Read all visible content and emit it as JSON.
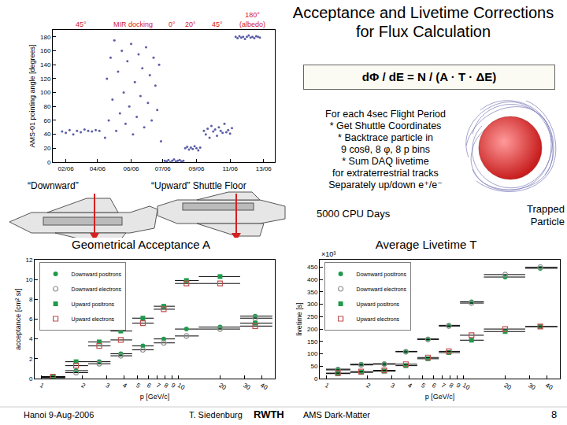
{
  "slide": {
    "title": "Acceptance and Livetime Corrections for Flux Calculation",
    "formula": "dΦ / dE  =  N / (A · T · ΔE)",
    "method_lines": [
      "For each 4sec Flight Period",
      "* Get Shuttle Coordinates",
      "* Backtrace particle in",
      "9 cosθ, 8 φ, 8 p bins",
      "* Sum DAQ livetime",
      "for extraterrestrial tracks",
      "Separately up/down e⁺/e⁻"
    ],
    "cpu": "5000 CPU Days",
    "trapped_label": "Trapped Particle",
    "downward_label": "“Downward”",
    "upward_label": "“Upward” Shuttle Floor",
    "footer": {
      "place_date": "Hanoi  9-Aug-2006",
      "author": "T. Siedenburg",
      "logo": "RWTH",
      "talk": "AMS Dark-Matter",
      "page": "8"
    }
  },
  "chart_data": [
    {
      "type": "scatter",
      "y_label": "AMS-01 pointing angle [degrees]",
      "x": [
        2.0,
        2.2,
        2.4,
        2.6,
        2.8,
        3.0,
        3.2,
        3.4,
        3.6,
        3.8,
        4.0,
        4.3,
        4.4,
        4.5,
        4.6,
        4.7,
        4.8,
        4.9,
        5.0,
        5.1,
        5.2,
        5.3,
        5.4,
        5.5,
        5.6,
        5.7,
        5.8,
        5.9,
        6.0,
        6.1,
        6.2,
        6.3,
        6.4,
        6.5,
        6.6,
        6.7,
        6.8,
        6.9,
        7.0,
        7.1,
        7.2,
        7.3,
        7.5,
        7.6,
        7.7,
        7.8,
        7.9,
        8.0,
        8.1,
        8.2,
        8.3,
        8.4,
        8.5,
        8.6,
        8.7,
        8.8,
        8.9,
        9.0,
        9.1,
        9.2,
        9.3,
        9.4,
        9.6,
        9.7,
        9.8,
        9.9,
        10.0,
        10.1,
        10.2,
        10.3,
        10.4,
        10.5,
        10.6,
        10.7,
        10.8,
        10.9,
        11.0,
        11.1,
        11.3,
        11.4,
        11.5,
        11.6,
        11.7,
        11.8,
        11.9,
        12.0,
        12.1,
        12.2,
        12.3,
        12.4,
        12.5,
        12.6
      ],
      "values": [
        44,
        42,
        46,
        40,
        45,
        43,
        47,
        45,
        44,
        46,
        45,
        35,
        120,
        60,
        150,
        90,
        175,
        45,
        130,
        70,
        160,
        100,
        55,
        145,
        80,
        170,
        40,
        115,
        65,
        155,
        95,
        135,
        50,
        165,
        85,
        125,
        60,
        150,
        110,
        75,
        140,
        30,
        2,
        1,
        3,
        0,
        2,
        4,
        1,
        2,
        3,
        1,
        2,
        20,
        22,
        18,
        21,
        19,
        23,
        20,
        17,
        21,
        45,
        40,
        48,
        35,
        52,
        44,
        47,
        38,
        50,
        45,
        42,
        55,
        43,
        46,
        41,
        49,
        180,
        178,
        181,
        179,
        180,
        177,
        180,
        182,
        179,
        180,
        178,
        181,
        180,
        179
      ],
      "color": "#5b5ea6",
      "marker": "dot",
      "xlim": [
        1.5,
        13.4
      ],
      "xticks": [
        {
          "value": 2.2,
          "label": "02/06"
        },
        {
          "value": 3.9,
          "label": "04/06"
        },
        {
          "value": 5.7,
          "label": "06/06"
        },
        {
          "value": 7.4,
          "label": "07/06"
        },
        {
          "value": 9.2,
          "label": "09/06"
        },
        {
          "value": 11.0,
          "label": "11/06"
        },
        {
          "value": 12.8,
          "label": "13/06"
        }
      ],
      "ylim": [
        0,
        190
      ],
      "yticks": [
        0,
        20,
        40,
        60,
        80,
        100,
        120,
        140,
        160,
        180
      ],
      "grid": false,
      "annotations": [
        {
          "text": "45°",
          "x": 3.0
        },
        {
          "text": "MIR docking",
          "x": 5.8
        },
        {
          "text": "0°",
          "x": 7.9
        },
        {
          "text": "20°",
          "x": 8.9
        },
        {
          "text": "45°",
          "x": 10.3
        },
        {
          "text": "180° (albedo)",
          "x": 12.2
        }
      ]
    },
    {
      "type": "scatter",
      "title": "Geometrical Acceptance A",
      "x_label": "p [GeV/c]",
      "y_label": "acceptance [cm² sr]",
      "x": [
        1.22,
        1.8,
        2.65,
        3.8,
        5.5,
        7.8,
        11.4,
        20,
        36
      ],
      "bins": [
        1,
        1.5,
        2.2,
        3.2,
        4.6,
        6.6,
        9.4,
        14,
        28,
        48
      ],
      "log": "x",
      "xlim": [
        0.9,
        50
      ],
      "xticks": [
        1,
        2,
        3,
        4,
        5,
        6,
        7,
        8,
        9,
        10,
        20,
        30,
        40
      ],
      "ylim": [
        0,
        12
      ],
      "yticks": [
        0,
        2,
        4,
        6,
        8,
        10,
        12
      ],
      "grid": false,
      "legend": "top-left",
      "series": [
        {
          "name": "Downward positrons",
          "color": "#1f9a4b",
          "marker": "circle",
          "values": [
            0.1,
            0.8,
            1.7,
            2.5,
            3.3,
            4.0,
            5.0,
            5.2,
            6.3
          ]
        },
        {
          "name": "Downward electrons",
          "color": "#8c8c8c",
          "marker": "circle-open",
          "values": [
            0.1,
            0.6,
            1.5,
            2.3,
            2.9,
            3.6,
            4.3,
            5.0,
            6.1
          ]
        },
        {
          "name": "Upward positrons",
          "color": "#1f9a4b",
          "marker": "square",
          "values": [
            0.2,
            1.7,
            3.7,
            4.8,
            6.1,
            7.3,
            9.9,
            10.3,
            5.6
          ]
        },
        {
          "name": "Upward electrons",
          "color": "#c0504d",
          "marker": "square-open",
          "values": [
            0.2,
            1.3,
            3.3,
            3.9,
            5.6,
            7.0,
            9.6,
            9.6,
            5.3
          ]
        }
      ]
    },
    {
      "type": "scatter",
      "title": "Average Livetime T",
      "x_label": "p [GeV/c]",
      "y_label": "livetime [s]",
      "y_multiplier": "×10³",
      "x": [
        1.22,
        1.8,
        2.65,
        3.8,
        5.5,
        7.8,
        11.4,
        20,
        36
      ],
      "bins": [
        1,
        1.5,
        2.2,
        3.2,
        4.6,
        6.6,
        9.4,
        14,
        28,
        48
      ],
      "log": "x",
      "xlim": [
        0.9,
        50
      ],
      "xticks": [
        1,
        2,
        3,
        4,
        5,
        6,
        7,
        8,
        9,
        10,
        20,
        30,
        40
      ],
      "ylim": [
        0,
        480
      ],
      "yticks": [
        0,
        50,
        100,
        150,
        200,
        250,
        300,
        350,
        400,
        450
      ],
      "grid": false,
      "legend": "top-left",
      "series": [
        {
          "name": "Downward positrons",
          "color": "#1f9a4b",
          "marker": "circle",
          "values": [
            38,
            58,
            60,
            110,
            160,
            215,
            310,
            410,
            445
          ]
        },
        {
          "name": "Downward electrons",
          "color": "#8c8c8c",
          "marker": "circle-open",
          "values": [
            35,
            55,
            58,
            108,
            158,
            212,
            305,
            420,
            450
          ]
        },
        {
          "name": "Upward positrons",
          "color": "#1f9a4b",
          "marker": "square",
          "values": [
            20,
            25,
            30,
            52,
            80,
            105,
            155,
            190,
            210
          ]
        },
        {
          "name": "Upward electrons",
          "color": "#c0504d",
          "marker": "square-open",
          "values": [
            22,
            28,
            33,
            58,
            85,
            110,
            175,
            200,
            210
          ]
        }
      ]
    }
  ]
}
